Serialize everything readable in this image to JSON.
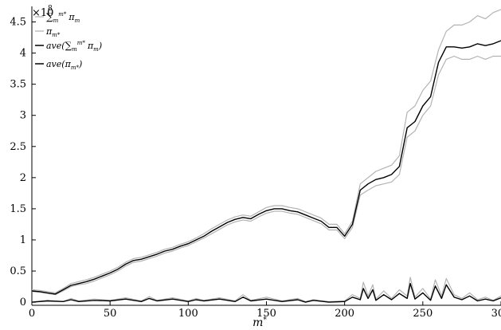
{
  "chart_data": {
    "type": "line",
    "xlabel": "m*",
    "ylabel": "",
    "y_exponent_label": "×10",
    "y_exponent": "8",
    "xlim": [
      0,
      300
    ],
    "ylim": [
      -0.05,
      4.75
    ],
    "x_ticks": [
      0,
      50,
      100,
      150,
      200,
      250,
      300
    ],
    "x_tick_labels": [
      "0",
      "50",
      "100",
      "150",
      "200",
      "250",
      "300"
    ],
    "y_ticks": [
      0,
      0.5,
      1,
      1.5,
      2,
      2.5,
      3,
      3.5,
      4,
      4.5
    ],
    "y_tick_labels": [
      "0",
      "0.5",
      "1",
      "1.5",
      "2",
      "2.5",
      "3",
      "3.5",
      "4",
      "4.5"
    ],
    "grid": false,
    "legend_position": "top-left",
    "legend": [
      {
        "label": "∑m m* πm",
        "color": "#b3b3b3"
      },
      {
        "label": "πm*",
        "color": "#b3b3b3"
      },
      {
        "label": "ave(∑m m* πm)",
        "color": "#000000"
      },
      {
        "label": "ave(πm*)",
        "color": "#000000"
      }
    ],
    "series": [
      {
        "color": "#b3b3b3",
        "x": [
          0,
          5,
          10,
          15,
          20,
          25,
          30,
          35,
          40,
          45,
          50,
          55,
          60,
          65,
          70,
          75,
          80,
          85,
          90,
          95,
          100,
          105,
          110,
          115,
          120,
          125,
          130,
          135,
          140,
          145,
          150,
          155,
          160,
          165,
          170,
          175,
          180,
          185,
          190,
          195,
          200,
          205,
          210,
          215,
          220,
          225,
          230,
          235,
          240,
          245,
          250,
          255,
          260,
          265,
          270,
          275,
          280,
          285,
          290,
          295,
          300
        ],
        "values": [
          0.2,
          0.19,
          0.17,
          0.15,
          0.22,
          0.3,
          0.33,
          0.36,
          0.4,
          0.45,
          0.5,
          0.56,
          0.64,
          0.7,
          0.72,
          0.76,
          0.8,
          0.85,
          0.88,
          0.93,
          0.97,
          1.03,
          1.1,
          1.18,
          1.25,
          1.32,
          1.37,
          1.4,
          1.38,
          1.45,
          1.52,
          1.55,
          1.55,
          1.52,
          1.5,
          1.45,
          1.4,
          1.35,
          1.25,
          1.25,
          1.1,
          1.3,
          1.9,
          2.0,
          2.1,
          2.15,
          2.2,
          2.35,
          3.05,
          3.15,
          3.4,
          3.55,
          4.05,
          4.35,
          4.45,
          4.45,
          4.5,
          4.6,
          4.55,
          4.65,
          4.7
        ]
      },
      {
        "color": "#b3b3b3",
        "x": [
          0,
          5,
          10,
          15,
          20,
          25,
          30,
          35,
          40,
          45,
          50,
          55,
          60,
          65,
          70,
          75,
          80,
          85,
          90,
          95,
          100,
          105,
          110,
          115,
          120,
          125,
          130,
          135,
          140,
          145,
          150,
          155,
          160,
          165,
          170,
          175,
          180,
          185,
          190,
          195,
          200,
          205,
          210,
          215,
          220,
          225,
          230,
          235,
          240,
          245,
          250,
          255,
          260,
          265,
          270,
          275,
          280,
          285,
          290,
          295,
          300
        ],
        "values": [
          0.17,
          0.16,
          0.14,
          0.12,
          0.18,
          0.25,
          0.28,
          0.3,
          0.34,
          0.39,
          0.44,
          0.5,
          0.58,
          0.64,
          0.66,
          0.7,
          0.74,
          0.79,
          0.82,
          0.87,
          0.91,
          0.97,
          1.03,
          1.1,
          1.17,
          1.24,
          1.29,
          1.32,
          1.3,
          1.37,
          1.43,
          1.46,
          1.46,
          1.43,
          1.41,
          1.36,
          1.31,
          1.26,
          1.16,
          1.16,
          1.02,
          1.2,
          1.72,
          1.8,
          1.87,
          1.9,
          1.93,
          2.05,
          2.65,
          2.75,
          3.0,
          3.15,
          3.65,
          3.9,
          3.95,
          3.9,
          3.9,
          3.95,
          3.9,
          3.95,
          3.95
        ]
      },
      {
        "color": "#000000",
        "x": [
          0,
          5,
          10,
          15,
          20,
          25,
          30,
          35,
          40,
          45,
          50,
          55,
          60,
          65,
          70,
          75,
          80,
          85,
          90,
          95,
          100,
          105,
          110,
          115,
          120,
          125,
          130,
          135,
          140,
          145,
          150,
          155,
          160,
          165,
          170,
          175,
          180,
          185,
          190,
          195,
          200,
          205,
          210,
          215,
          220,
          225,
          230,
          235,
          240,
          245,
          250,
          255,
          260,
          265,
          270,
          275,
          280,
          285,
          290,
          295,
          300
        ],
        "values": [
          0.18,
          0.17,
          0.15,
          0.13,
          0.2,
          0.27,
          0.3,
          0.33,
          0.37,
          0.42,
          0.47,
          0.53,
          0.61,
          0.67,
          0.69,
          0.73,
          0.77,
          0.82,
          0.85,
          0.9,
          0.94,
          1.0,
          1.06,
          1.14,
          1.21,
          1.28,
          1.33,
          1.36,
          1.34,
          1.41,
          1.47,
          1.5,
          1.5,
          1.47,
          1.45,
          1.4,
          1.35,
          1.3,
          1.2,
          1.2,
          1.06,
          1.25,
          1.8,
          1.9,
          1.97,
          2.0,
          2.05,
          2.18,
          2.8,
          2.9,
          3.15,
          3.3,
          3.85,
          4.1,
          4.1,
          4.08,
          4.1,
          4.15,
          4.12,
          4.15,
          4.2
        ]
      },
      {
        "color": "#b3b3b3",
        "x": [
          0,
          10,
          20,
          25,
          30,
          40,
          50,
          60,
          70,
          75,
          80,
          90,
          100,
          105,
          110,
          120,
          130,
          135,
          140,
          150,
          160,
          170,
          175,
          180,
          190,
          200,
          205,
          210,
          212,
          215,
          218,
          220,
          225,
          230,
          235,
          240,
          242,
          245,
          250,
          255,
          258,
          262,
          265,
          270,
          275,
          280,
          285,
          290,
          295,
          300
        ],
        "values": [
          0.0,
          0.03,
          0.01,
          0.06,
          0.02,
          0.05,
          0.03,
          0.07,
          0.02,
          0.09,
          0.03,
          0.07,
          0.02,
          0.06,
          0.03,
          0.07,
          0.02,
          0.12,
          0.03,
          0.08,
          0.02,
          0.06,
          0.01,
          0.04,
          0.01,
          0.02,
          0.12,
          0.06,
          0.32,
          0.1,
          0.28,
          0.05,
          0.18,
          0.06,
          0.2,
          0.1,
          0.4,
          0.08,
          0.22,
          0.05,
          0.36,
          0.1,
          0.38,
          0.12,
          0.06,
          0.15,
          0.04,
          0.08,
          0.03,
          0.1
        ]
      },
      {
        "color": "#000000",
        "x": [
          0,
          10,
          20,
          25,
          30,
          40,
          50,
          60,
          70,
          75,
          80,
          90,
          100,
          105,
          110,
          120,
          130,
          135,
          140,
          150,
          160,
          170,
          175,
          180,
          190,
          200,
          205,
          210,
          212,
          215,
          218,
          220,
          225,
          230,
          235,
          240,
          242,
          245,
          250,
          255,
          258,
          262,
          265,
          270,
          275,
          280,
          285,
          290,
          295,
          300
        ],
        "values": [
          0.0,
          0.02,
          0.01,
          0.04,
          0.01,
          0.03,
          0.02,
          0.05,
          0.01,
          0.06,
          0.02,
          0.05,
          0.01,
          0.04,
          0.02,
          0.05,
          0.01,
          0.08,
          0.02,
          0.05,
          0.01,
          0.04,
          0.0,
          0.03,
          0.0,
          0.01,
          0.08,
          0.04,
          0.22,
          0.06,
          0.2,
          0.03,
          0.12,
          0.04,
          0.14,
          0.06,
          0.3,
          0.05,
          0.15,
          0.03,
          0.26,
          0.06,
          0.28,
          0.08,
          0.04,
          0.1,
          0.02,
          0.05,
          0.02,
          0.07
        ]
      }
    ]
  }
}
